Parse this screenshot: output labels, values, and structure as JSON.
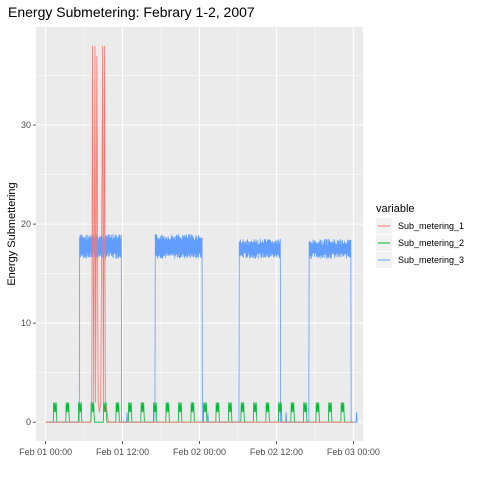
{
  "chart_data": {
    "type": "line",
    "title": "Energy Submetering: Febrary 1-2, 2007",
    "xlabel": "",
    "ylabel": "Energy Submettering",
    "x_ticks": [
      "Feb 01 00:00",
      "Feb 01 12:00",
      "Feb 02 00:00",
      "Feb 02 12:00",
      "Feb 03 00:00"
    ],
    "y_ticks": [
      "0",
      "10",
      "20",
      "30"
    ],
    "xlim_hours": [
      -1.5,
      49.5
    ],
    "ylim": [
      -1.9,
      39.9
    ],
    "grid": true,
    "legend": {
      "title": "variable",
      "position": "right"
    },
    "colors": {
      "Sub_metering_1": "#F8766D",
      "Sub_metering_2": "#00BA38",
      "Sub_metering_3": "#619CFF"
    },
    "series": [
      {
        "name": "Sub_metering_1",
        "points": [
          [
            0,
            0
          ],
          [
            7.1,
            0
          ],
          [
            7.2,
            2
          ],
          [
            7.3,
            38
          ],
          [
            7.5,
            2
          ],
          [
            7.7,
            38
          ],
          [
            7.8,
            2
          ],
          [
            8.0,
            37
          ],
          [
            8.2,
            2
          ],
          [
            8.4,
            1
          ],
          [
            8.6,
            2
          ],
          [
            8.9,
            38
          ],
          [
            9.0,
            2
          ],
          [
            9.2,
            38
          ],
          [
            9.3,
            2
          ],
          [
            9.6,
            1
          ],
          [
            9.8,
            0
          ],
          [
            48,
            0
          ]
        ]
      },
      {
        "name": "Sub_metering_2",
        "periodic_spikes": {
          "period_hours": 1.95,
          "start_hours": 1.2,
          "end_hours": 47.6,
          "peak": 2,
          "baseline": 0
        }
      },
      {
        "name": "Sub_metering_3",
        "segments": [
          {
            "start_hours": 5.3,
            "end_hours": 11.8,
            "low": 16.5,
            "high": 19
          },
          {
            "start_hours": 17.1,
            "end_hours": 24.4,
            "low": 16.5,
            "high": 19
          },
          {
            "start_hours": 30.2,
            "end_hours": 36.6,
            "low": 16.5,
            "high": 18.5
          },
          {
            "start_hours": 41.1,
            "end_hours": 47.6,
            "low": 16.5,
            "high": 18.5
          }
        ],
        "baseline": 0
      }
    ]
  }
}
